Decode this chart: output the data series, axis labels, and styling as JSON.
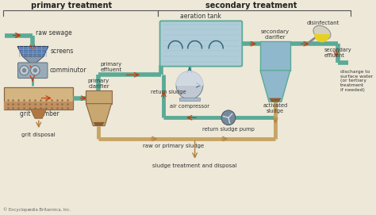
{
  "title_primary": "primary treatment",
  "title_secondary": "secondary treatment",
  "bg_color": "#f0ece0",
  "labels": {
    "raw_sewage": "raw sewage",
    "screens": "screens",
    "comminutor": "comminutor",
    "grit_chamber": "grit chamber",
    "grit_disposal": "grit disposal",
    "primary_clarifier": "primary\nclarifier",
    "primary_effluent": "primary\neffluent",
    "aeration_tank": "aeration tank",
    "air_compressor": "air compressor",
    "return_sludge": "return sludge",
    "return_sludge_pump": "return sludge pump",
    "raw_primary_sludge": "raw or primary sludge",
    "sludge_treatment": "sludge treatment and disposal",
    "secondary_clarifier": "secondary\nclarifier",
    "activated_sludge": "activated\nsludge",
    "disinfectant": "disinfectant",
    "secondary_effluent": "secondary\neffluent",
    "discharge": "discharge to\nsurface water\n(or tertiary\ntreatment\nif needed)",
    "copyright": "© Encyclopædia Britannica, Inc."
  },
  "colors": {
    "teal_pipe": "#5aaa96",
    "tan_pipe": "#c8a464",
    "red_arrow": "#cc3300",
    "tan_arrow": "#b08040",
    "text": "#333333",
    "header_bg": "#ede8d8",
    "aeration_fill": "#b0ccd8",
    "aeration_edge": "#5aaa96",
    "clarifier_fill": "#90b8cc",
    "grit_fill": "#c8a464",
    "grit_dark": "#a07840",
    "screen_blue": "#5577aa",
    "screen_light": "#88aacc",
    "comminutor_fill": "#9aabb8",
    "comminutor_edge": "#667788",
    "sludge_brown": "#8b5c30",
    "pipe_lw": 4.0,
    "sludge_pipe_lw": 3.5
  }
}
